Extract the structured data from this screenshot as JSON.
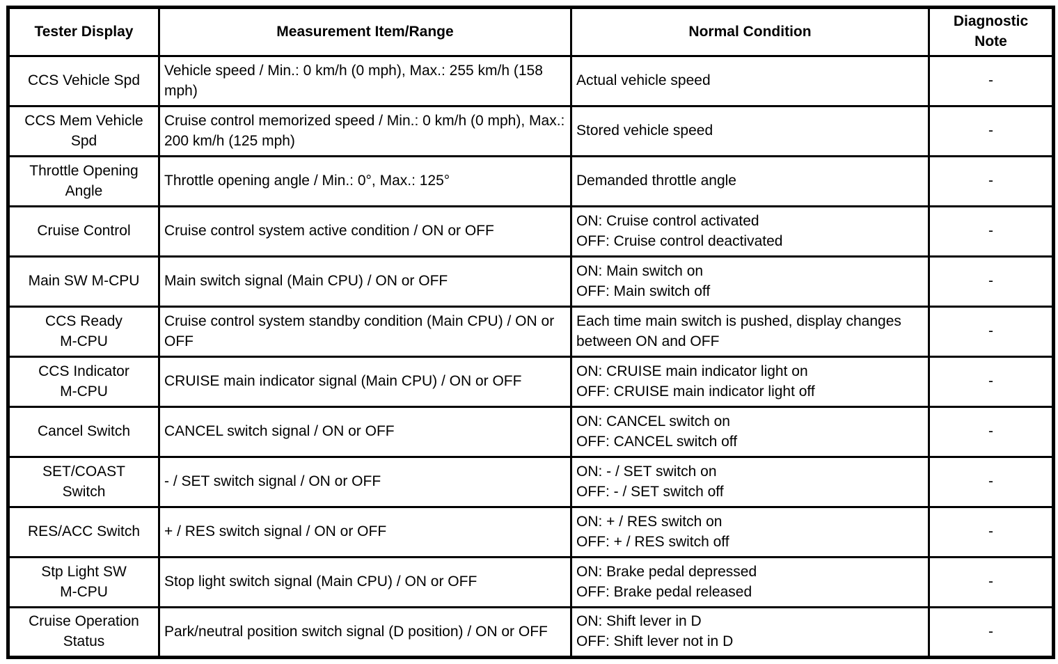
{
  "table": {
    "headers": {
      "tester_display": "Tester Display",
      "measurement_range": "Measurement Item/Range",
      "normal_condition": "Normal Condition",
      "diagnostic_note": "Diagnostic\nNote"
    },
    "rows": [
      {
        "tester": "CCS Vehicle Spd",
        "measurement": "Vehicle speed / Min.: 0 km/h (0 mph), Max.: 255 km/h (158 mph)",
        "normal": "Actual vehicle speed",
        "note": "-"
      },
      {
        "tester": "CCS Mem Vehicle\nSpd",
        "measurement": "Cruise control memorized speed / Min.: 0 km/h (0 mph), Max.: 200 km/h (125 mph)",
        "normal": "Stored vehicle speed",
        "note": "-"
      },
      {
        "tester": "Throttle Opening\nAngle",
        "measurement": "Throttle opening angle / Min.: 0°, Max.: 125°",
        "normal": "Demanded throttle angle",
        "note": "-"
      },
      {
        "tester": "Cruise Control",
        "measurement": "Cruise control system active condition / ON or OFF",
        "normal": "ON: Cruise control activated\nOFF: Cruise control deactivated",
        "note": "-"
      },
      {
        "tester": "Main SW M-CPU",
        "measurement": "Main switch signal (Main CPU) / ON or OFF",
        "normal": "ON: Main switch on\nOFF: Main switch off",
        "note": "-"
      },
      {
        "tester": "CCS Ready\nM-CPU",
        "measurement": "Cruise control system standby condition (Main CPU) / ON or OFF",
        "normal": "Each time main switch is pushed, display changes between ON and OFF",
        "note": "-"
      },
      {
        "tester": "CCS Indicator\nM-CPU",
        "measurement": "CRUISE main indicator signal (Main CPU) / ON or OFF",
        "normal": "ON: CRUISE main indicator light on\nOFF: CRUISE main indicator light off",
        "note": "-"
      },
      {
        "tester": "Cancel Switch",
        "measurement": "CANCEL switch signal / ON or OFF",
        "normal": "ON: CANCEL switch on\nOFF: CANCEL switch off",
        "note": "-"
      },
      {
        "tester": "SET/COAST\nSwitch",
        "measurement": "- / SET switch signal / ON or OFF",
        "normal": "ON: - / SET switch on\nOFF: - / SET switch off",
        "note": "-"
      },
      {
        "tester": "RES/ACC Switch",
        "measurement": "+ / RES switch signal / ON or OFF",
        "normal": "ON: + / RES switch on\nOFF: + / RES switch off",
        "note": "-"
      },
      {
        "tester": "Stp Light SW\nM-CPU",
        "measurement": "Stop light switch signal (Main CPU) / ON or OFF",
        "normal": "ON: Brake pedal depressed\nOFF: Brake pedal released",
        "note": "-"
      },
      {
        "tester": "Cruise Operation\nStatus",
        "measurement": "Park/neutral position switch signal (D position) / ON or OFF",
        "normal": "ON: Shift lever in D\nOFF: Shift lever not in D",
        "note": "-"
      }
    ]
  }
}
